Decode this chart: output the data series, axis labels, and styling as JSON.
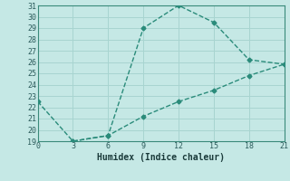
{
  "line1_x": [
    3,
    6,
    9,
    12,
    15,
    18,
    21
  ],
  "line1_y": [
    19.0,
    19.5,
    29.0,
    31.0,
    29.5,
    26.2,
    25.8
  ],
  "line2_x": [
    0,
    3,
    6,
    9,
    12,
    15,
    18,
    21
  ],
  "line2_y": [
    22.5,
    19.0,
    19.5,
    21.2,
    22.5,
    23.5,
    24.8,
    25.8
  ],
  "line_color": "#2a8b7a",
  "bg_color": "#c5e8e5",
  "grid_color": "#a8d4d0",
  "xlabel": "Humidex (Indice chaleur)",
  "xlim": [
    0,
    21
  ],
  "ylim": [
    19,
    31
  ],
  "xticks": [
    0,
    3,
    6,
    9,
    12,
    15,
    18,
    21
  ],
  "yticks": [
    19,
    20,
    21,
    22,
    23,
    24,
    25,
    26,
    27,
    28,
    29,
    30,
    31
  ]
}
